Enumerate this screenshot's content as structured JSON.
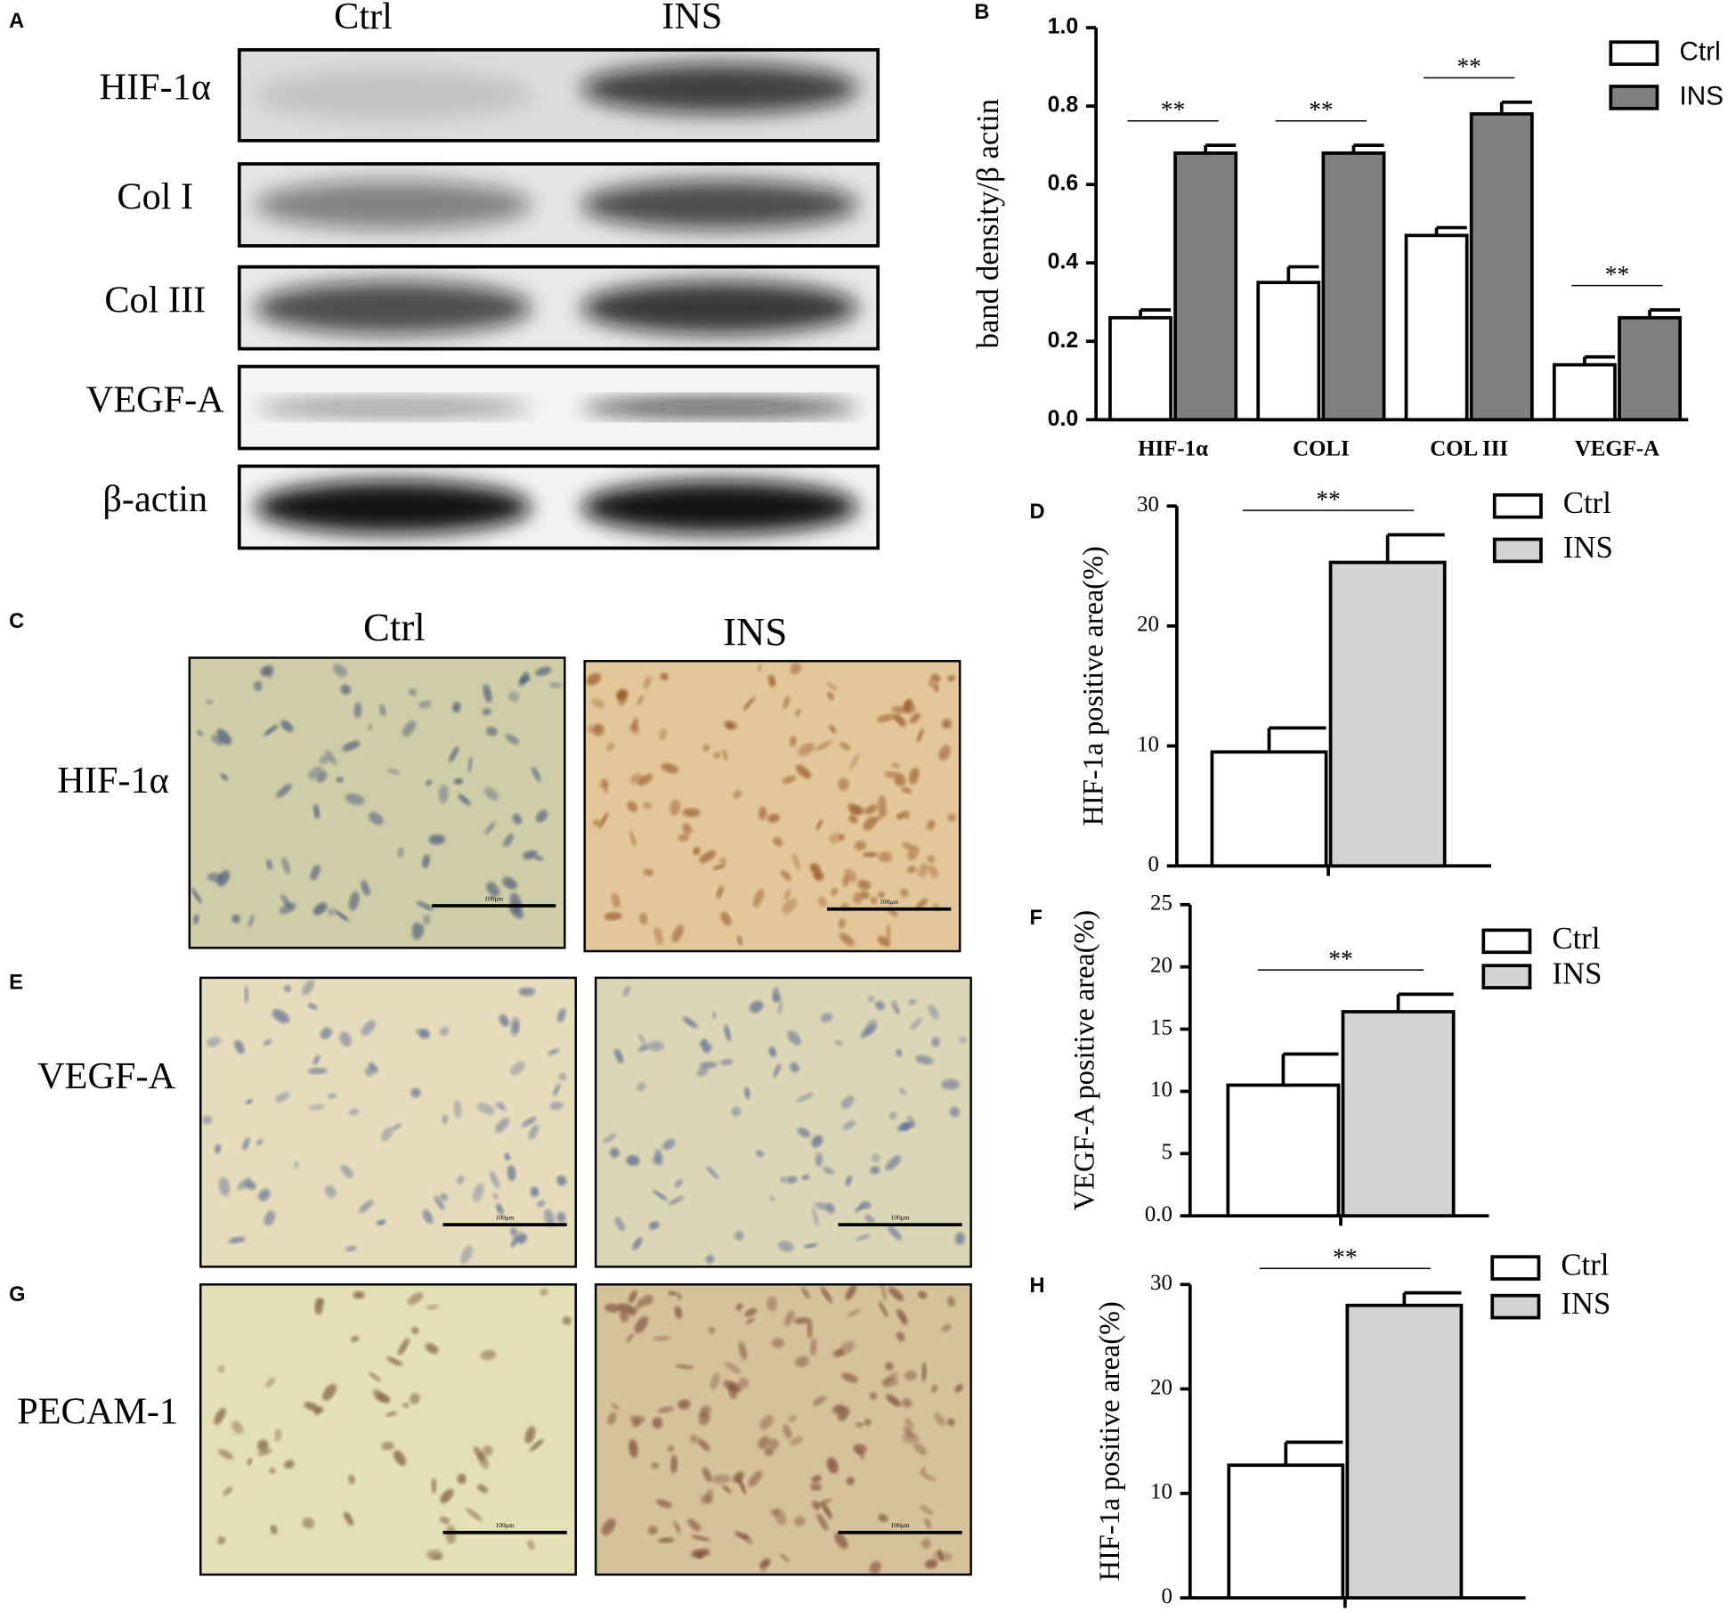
{
  "panels": {
    "A": {
      "label": "A",
      "columns": [
        "Ctrl",
        "INS"
      ],
      "rows": [
        "HIF-1α",
        "Col I",
        "Col III",
        "VEGF-A",
        "β-actin"
      ]
    },
    "C": {
      "label": "C",
      "columns": [
        "Ctrl",
        "INS"
      ],
      "row": "HIF-1α",
      "scale_bar": "100μm"
    },
    "E": {
      "label": "E",
      "row": "VEGF-A",
      "scale_bar": "100μm"
    },
    "G": {
      "label": "G",
      "row": "PECAM-1",
      "scale_bar": "100μm"
    }
  },
  "chart_data": [
    {
      "type": "bar",
      "panel_label": "B",
      "ylabel": "band density/β actin",
      "categories": [
        "HIF-1α",
        "COLI",
        "COL III",
        "VEGF-A"
      ],
      "series": [
        {
          "name": "Ctrl",
          "color": "#ffffff",
          "values": [
            0.26,
            0.35,
            0.47,
            0.14
          ],
          "errors": [
            0.02,
            0.04,
            0.02,
            0.02
          ]
        },
        {
          "name": "INS",
          "color": "#808080",
          "values": [
            0.68,
            0.68,
            0.78,
            0.26
          ],
          "errors": [
            0.02,
            0.02,
            0.03,
            0.02
          ]
        }
      ],
      "significance": [
        "**",
        "**",
        "**",
        "**"
      ],
      "ylim": [
        0,
        1.0
      ],
      "yticks": [
        {
          "value": 0,
          "label": "0.0"
        },
        0.2,
        0.4,
        0.6,
        0.8,
        {
          "value": 1.0,
          "label": "1.0"
        }
      ]
    },
    {
      "type": "bar",
      "panel_label": "D",
      "ylabel": "HIF-1a positive area(%)",
      "categories": [
        null
      ],
      "series": [
        {
          "name": "Ctrl",
          "color": "#ffffff",
          "values": [
            9.5
          ],
          "errors": [
            2.0
          ]
        },
        {
          "name": "INS",
          "color": "#d3d3d3",
          "values": [
            25.3
          ],
          "errors": [
            2.3
          ]
        }
      ],
      "significance": [
        "**"
      ],
      "ylim": [
        0,
        30
      ],
      "yticks": [
        0,
        10,
        20,
        30
      ]
    },
    {
      "type": "bar",
      "panel_label": "F",
      "ylabel": "VEGF-A positive area(%)",
      "categories": [
        null
      ],
      "series": [
        {
          "name": "Ctrl",
          "color": "#ffffff",
          "values": [
            10.5
          ],
          "errors": [
            2.5
          ]
        },
        {
          "name": "INS",
          "color": "#d3d3d3",
          "values": [
            16.4
          ],
          "errors": [
            1.4
          ]
        }
      ],
      "significance": [
        "**"
      ],
      "ylim": [
        0,
        25
      ],
      "yticks": [
        {
          "value": 0,
          "label": "0.0"
        },
        5,
        10,
        15,
        20,
        25
      ]
    },
    {
      "type": "bar",
      "panel_label": "H",
      "ylabel": "HIF-1a positive area(%)",
      "categories": [
        null
      ],
      "series": [
        {
          "name": "Ctrl",
          "color": "#ffffff",
          "values": [
            12.7
          ],
          "errors": [
            2.2
          ]
        },
        {
          "name": "INS",
          "color": "#d3d3d3",
          "values": [
            28.0
          ],
          "errors": [
            1.2
          ]
        }
      ],
      "significance": [
        "**"
      ],
      "ylim": [
        0,
        30
      ],
      "yticks": [
        0,
        10,
        20,
        30
      ]
    }
  ]
}
